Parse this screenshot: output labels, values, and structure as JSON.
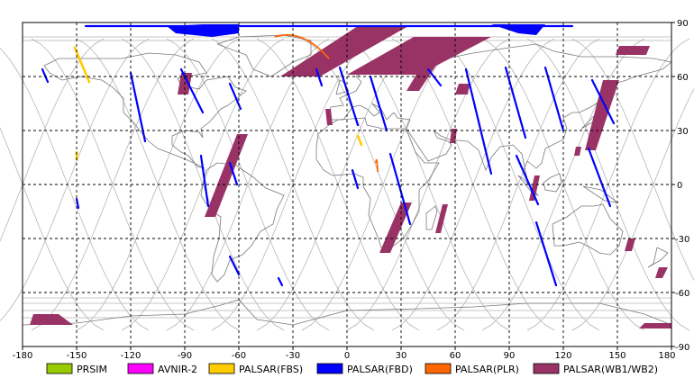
{
  "map": {
    "x_ticks": [
      "-180",
      "-150",
      "-120",
      "-90",
      "-60",
      "-30",
      "0",
      "30",
      "60",
      "90",
      "120",
      "150",
      "180"
    ],
    "y_ticks": [
      "90",
      "60",
      "30",
      "0",
      "-30",
      "-60",
      "-90"
    ],
    "lon_range": [
      -180,
      180
    ],
    "lat_range": [
      -90,
      90
    ],
    "grid": "dashed",
    "colors": {
      "grid": "#000000",
      "orbit": "#b4b4b4",
      "coast": "#7a7a7a"
    }
  },
  "legend": [
    {
      "label": "PRSIM",
      "color": "#99cc00"
    },
    {
      "label": "AVNIR-2",
      "color": "#ff00ff"
    },
    {
      "label": "PALSAR(FBS)",
      "color": "#ffcc00"
    },
    {
      "label": "PALSAR(FBD)",
      "color": "#0000ff"
    },
    {
      "label": "PALSAR(PLR)",
      "color": "#ff6600"
    },
    {
      "label": "PALSAR(WB1/WB2)",
      "color": "#993366"
    }
  ],
  "observations": {
    "fbd": [
      [
        -169,
        64,
        -166,
        57
      ],
      [
        -120,
        62,
        -112,
        24
      ],
      [
        -92,
        64,
        -80,
        40
      ],
      [
        -81,
        16,
        -77,
        -12
      ],
      [
        -65,
        56,
        -59,
        42
      ],
      [
        -65,
        12,
        -61,
        0
      ],
      [
        -65,
        -40,
        -60,
        -50
      ],
      [
        -38,
        -52,
        -36,
        -56
      ],
      [
        -150,
        -8,
        -149,
        -13
      ],
      [
        -17,
        64,
        -14,
        55
      ],
      [
        -4,
        65,
        6,
        33
      ],
      [
        3,
        8,
        6,
        -2
      ],
      [
        13,
        60,
        22,
        30
      ],
      [
        24,
        17,
        35,
        -22
      ],
      [
        45,
        64,
        52,
        55
      ],
      [
        66,
        64,
        80,
        6
      ],
      [
        88,
        65,
        99,
        26
      ],
      [
        110,
        65,
        120,
        30
      ],
      [
        94,
        16,
        106,
        -11
      ],
      [
        105,
        -21,
        116,
        -56
      ],
      [
        136,
        58,
        148,
        34
      ],
      [
        134,
        20,
        146,
        -12
      ],
      [
        -145,
        88,
        125,
        88
      ]
    ],
    "fbs": [
      [
        -151,
        76,
        -143,
        57
      ],
      [
        -150,
        18,
        -150,
        14
      ],
      [
        6,
        27,
        8,
        22
      ]
    ],
    "plr": [
      [
        -40,
        82,
        -10,
        70
      ],
      [
        16,
        12,
        17,
        7
      ]
    ],
    "wb": [
      [
        [
          -174,
          -72
        ],
        [
          -160,
          -72
        ],
        [
          -152,
          -78
        ],
        [
          -176,
          -78
        ]
      ],
      [
        [
          -92,
          62
        ],
        [
          -86,
          62
        ],
        [
          -88,
          50
        ],
        [
          -94,
          50
        ]
      ],
      [
        [
          -61,
          28
        ],
        [
          -55,
          28
        ],
        [
          -73,
          -18
        ],
        [
          -79,
          -18
        ]
      ],
      [
        [
          -12,
          42
        ],
        [
          -9,
          42
        ],
        [
          -8,
          33
        ],
        [
          -11,
          33
        ]
      ],
      [
        [
          6,
          88
        ],
        [
          34,
          88
        ],
        [
          -15,
          60
        ],
        [
          -37,
          60
        ]
      ],
      [
        [
          37,
          82
        ],
        [
          80,
          82
        ],
        [
          40,
          61
        ],
        [
          0,
          61
        ]
      ],
      [
        [
          42,
          67
        ],
        [
          50,
          67
        ],
        [
          40,
          52
        ],
        [
          33,
          52
        ]
      ],
      [
        [
          30,
          -10
        ],
        [
          36,
          -10
        ],
        [
          24,
          -38
        ],
        [
          18,
          -38
        ]
      ],
      [
        [
          53,
          -11
        ],
        [
          56,
          -11
        ],
        [
          52,
          -27
        ],
        [
          49,
          -27
        ]
      ],
      [
        [
          62,
          56
        ],
        [
          68,
          56
        ],
        [
          67,
          50
        ],
        [
          60,
          50
        ]
      ],
      [
        [
          58,
          31
        ],
        [
          61,
          31
        ],
        [
          60,
          23
        ],
        [
          57,
          23
        ]
      ],
      [
        [
          104,
          5
        ],
        [
          107,
          5
        ],
        [
          104,
          -9
        ],
        [
          101,
          -9
        ]
      ],
      [
        [
          151,
          77
        ],
        [
          168,
          77
        ],
        [
          166,
          72
        ],
        [
          149,
          72
        ]
      ],
      [
        [
          142,
          58
        ],
        [
          151,
          58
        ],
        [
          138,
          19
        ],
        [
          132,
          19
        ]
      ],
      [
        [
          127,
          21
        ],
        [
          130,
          21
        ],
        [
          129,
          16
        ],
        [
          126,
          16
        ]
      ],
      [
        [
          156,
          -30
        ],
        [
          160,
          -30
        ],
        [
          158,
          -37
        ],
        [
          154,
          -37
        ]
      ],
      [
        [
          173,
          -46
        ],
        [
          178,
          -46
        ],
        [
          175,
          -52
        ],
        [
          171,
          -52
        ]
      ],
      [
        [
          165,
          -77
        ],
        [
          180,
          -77
        ],
        [
          180,
          -80
        ],
        [
          162,
          -80
        ]
      ]
    ],
    "polar_fbd": [
      [
        -100,
        88
      ],
      [
        -80,
        89
      ],
      [
        -60,
        89
      ],
      [
        -60,
        84
      ],
      [
        -75,
        82
      ],
      [
        -95,
        84
      ]
    ],
    "polar_fbd_2": [
      [
        80,
        89
      ],
      [
        110,
        89
      ],
      [
        105,
        83
      ],
      [
        95,
        84
      ]
    ]
  }
}
